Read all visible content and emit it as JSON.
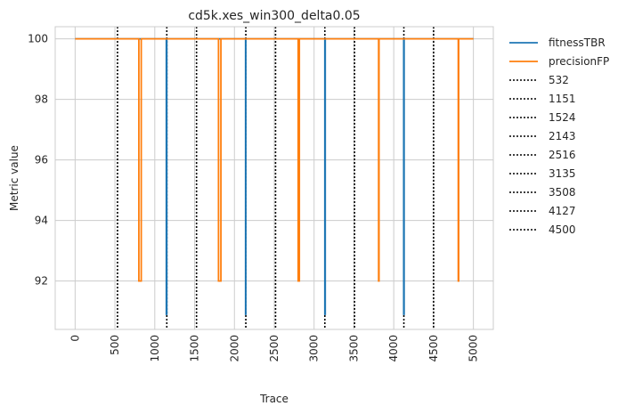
{
  "chart_data": {
    "type": "line",
    "title": "cd5k.xes_win300_delta0.05",
    "xlabel": "Trace",
    "ylabel": "Metric value",
    "xlim": [
      -250,
      5250
    ],
    "ylim": [
      90.4,
      100.4
    ],
    "xticks": [
      0,
      500,
      1000,
      1500,
      2000,
      2500,
      3000,
      3500,
      4000,
      4500,
      5000
    ],
    "yticks": [
      92,
      94,
      96,
      98,
      100
    ],
    "grid": true,
    "legend_position": "outside-right",
    "series": [
      {
        "name": "fitnessTBR",
        "color": "#1f77b4",
        "x": [
          0,
          1145,
          1145,
          1151,
          1151,
          2140,
          2140,
          2143,
          2143,
          3135,
          3135,
          3140,
          3140,
          4125,
          4125,
          4130,
          4130,
          5000
        ],
        "y": [
          100,
          100,
          90.9,
          90.9,
          100,
          100,
          90.9,
          90.9,
          100,
          100,
          90.9,
          90.9,
          100,
          100,
          90.9,
          90.9,
          100,
          100
        ]
      },
      {
        "name": "precisionFP",
        "color": "#ff7f0e",
        "x": [
          0,
          800,
          800,
          830,
          830,
          1800,
          1800,
          1830,
          1830,
          2800,
          2800,
          2815,
          2815,
          3810,
          3810,
          3815,
          3815,
          4810,
          4810,
          4815,
          4815,
          5000
        ],
        "y": [
          100,
          100,
          92,
          92,
          100,
          100,
          92,
          92,
          100,
          100,
          92,
          92,
          100,
          100,
          92,
          92,
          100,
          100,
          92,
          92,
          100,
          100
        ]
      }
    ],
    "vlines": [
      {
        "name": "532",
        "x": 532
      },
      {
        "name": "1151",
        "x": 1151
      },
      {
        "name": "1524",
        "x": 1524
      },
      {
        "name": "2143",
        "x": 2143
      },
      {
        "name": "2516",
        "x": 2516
      },
      {
        "name": "3135",
        "x": 3135
      },
      {
        "name": "3508",
        "x": 3508
      },
      {
        "name": "4127",
        "x": 4127
      },
      {
        "name": "4500",
        "x": 4500
      }
    ],
    "vline_style": "dotted",
    "vline_color": "#000000"
  }
}
